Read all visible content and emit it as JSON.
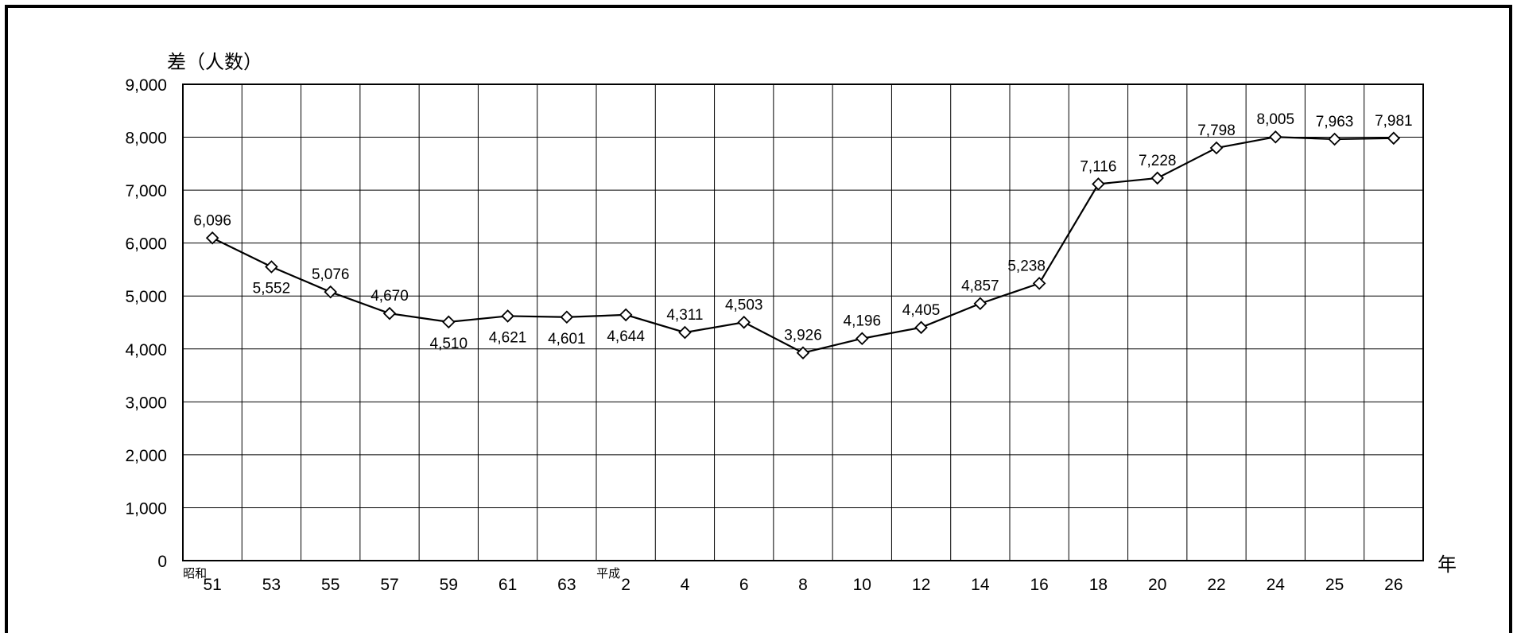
{
  "chart_data": {
    "type": "line",
    "ylabel": "差（人数）",
    "xlabel": "年",
    "ylim": [
      0,
      9000
    ],
    "yticks": [
      "0",
      "1,000",
      "2,000",
      "3,000",
      "4,000",
      "5,000",
      "6,000",
      "7,000",
      "8,000",
      "9,000"
    ],
    "grid": true,
    "era_labels": [
      {
        "text": "昭和",
        "at_index": 0
      },
      {
        "text": "平成",
        "at_index": 7
      }
    ],
    "categories": [
      "51",
      "53",
      "55",
      "57",
      "59",
      "61",
      "63",
      "2",
      "4",
      "6",
      "8",
      "10",
      "12",
      "14",
      "16",
      "18",
      "20",
      "22",
      "24",
      "25",
      "26"
    ],
    "series": [
      {
        "values": [
          6096,
          5552,
          5076,
          4670,
          4510,
          4621,
          4601,
          4644,
          4311,
          4503,
          3926,
          4196,
          4405,
          4857,
          5238,
          7116,
          7228,
          7798,
          8005,
          7963,
          7981
        ],
        "labels": [
          "6,096",
          "5,552",
          "5,076",
          "4,670",
          "4,510",
          "4,621",
          "4,601",
          "4,644",
          "4,311",
          "4,503",
          "3,926",
          "4,196",
          "4,405",
          "4,857",
          "5,238",
          "7,116",
          "7,228",
          "7,798",
          "8,005",
          "7,963",
          "7,981"
        ],
        "marker": "diamond",
        "color": "#000000"
      }
    ]
  }
}
